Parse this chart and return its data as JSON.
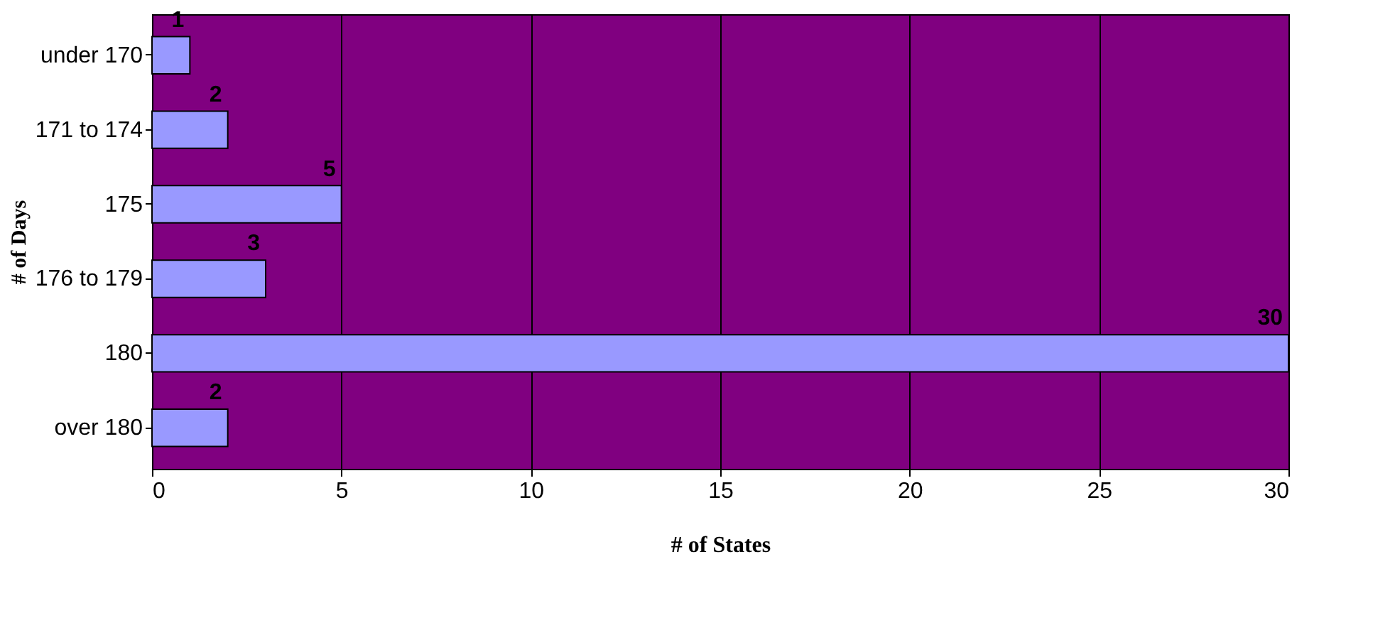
{
  "chart_data": {
    "type": "bar",
    "orientation": "horizontal",
    "xlabel": "# of States",
    "ylabel": "# of Days",
    "categories": [
      "under 170",
      "171 to 174",
      "175",
      "176 to 179",
      "180",
      "over 180"
    ],
    "series": [
      {
        "color": "#9999ff",
        "values": [
          1,
          2,
          5,
          3,
          30,
          2
        ]
      }
    ],
    "xlim": [
      0,
      30
    ],
    "xticks": [
      0,
      5,
      10,
      15,
      20,
      25,
      30
    ],
    "grid": "x",
    "data_labels": true
  }
}
